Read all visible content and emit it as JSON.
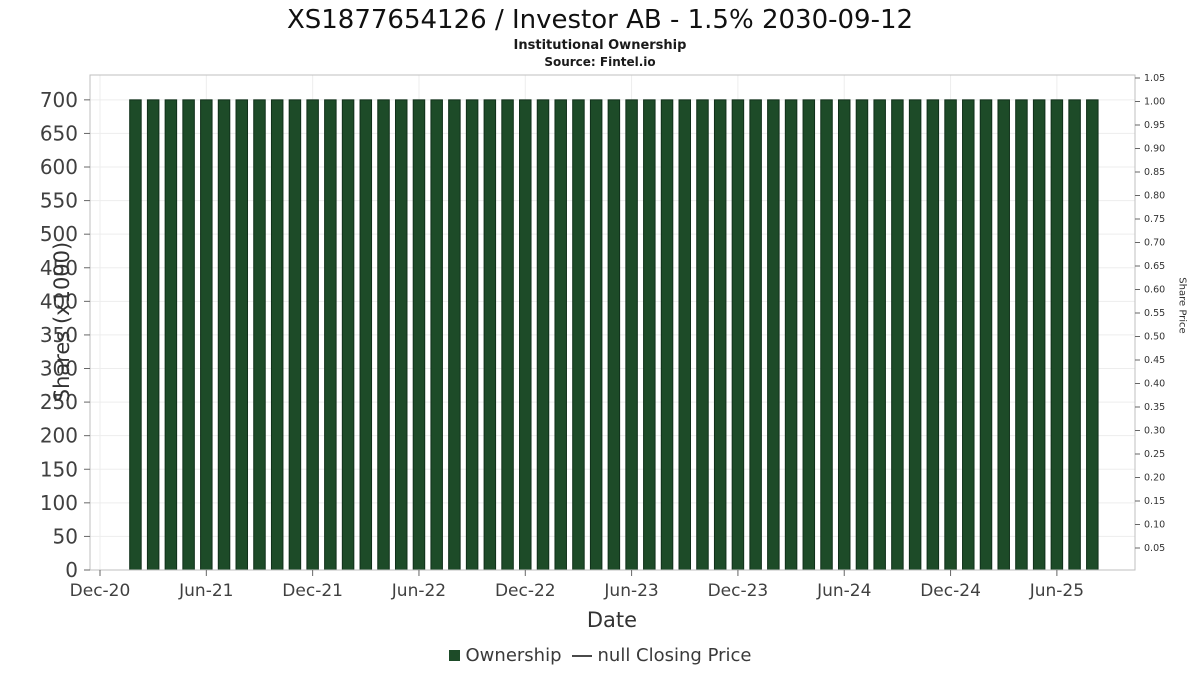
{
  "header": {
    "title": "XS1877654126 / Investor AB - 1.5% 2030-09-12",
    "subtitle": "Institutional Ownership",
    "source": "Source: Fintel.io"
  },
  "legend": {
    "ownership_label": "Ownership",
    "price_label": "null Closing Price"
  },
  "colors": {
    "bar_fill": "#1d4b28",
    "bar_edge": "#10301a",
    "grid": "#ededed",
    "plot_border": "#bfbfbf",
    "tick": "#666666",
    "tick_text": "#404040",
    "right_tick_text": "#333333",
    "legend_dash": "#4a4a4a"
  },
  "chart_data": {
    "type": "bar",
    "title": "XS1877654126 / Investor AB - 1.5% 2030-09-12",
    "subtitle": "Institutional Ownership",
    "source": "Source: Fintel.io",
    "xlabel": "Date",
    "ylabel_left": "Shares (x1000)",
    "ylabel_right": "Share Price",
    "ylim_left": [
      0,
      737
    ],
    "y_left_ticks": [
      0,
      50,
      100,
      150,
      200,
      250,
      300,
      350,
      400,
      450,
      500,
      550,
      600,
      650,
      700
    ],
    "y_right_ticks": [
      "1.05",
      "1.00",
      "0.95",
      "0.90",
      "0.85",
      "0.80",
      "0.75",
      "0.70",
      "0.65",
      "0.60",
      "0.55",
      "0.50",
      "0.45",
      "0.40",
      "0.35",
      "0.30",
      "0.25",
      "0.20",
      "0.15",
      "0.10",
      "0.05"
    ],
    "x_tick_labels": [
      "Dec-20",
      "Jun-21",
      "Dec-21",
      "Jun-22",
      "Dec-22",
      "Jun-23",
      "Dec-23",
      "Jun-24",
      "Dec-24",
      "Jun-25"
    ],
    "grid": true,
    "legend_position": "bottom",
    "categories": [
      "Feb-21",
      "Mar-21",
      "Apr-21",
      "May-21",
      "Jun-21",
      "Jul-21",
      "Aug-21",
      "Sep-21",
      "Oct-21",
      "Nov-21",
      "Dec-21",
      "Jan-22",
      "Feb-22",
      "Mar-22",
      "Apr-22",
      "May-22",
      "Jun-22",
      "Jul-22",
      "Aug-22",
      "Sep-22",
      "Oct-22",
      "Nov-22",
      "Dec-22",
      "Jan-23",
      "Feb-23",
      "Mar-23",
      "Apr-23",
      "May-23",
      "Jun-23",
      "Jul-23",
      "Aug-23",
      "Sep-23",
      "Oct-23",
      "Nov-23",
      "Dec-23",
      "Jan-24",
      "Feb-24",
      "Mar-24",
      "Apr-24",
      "May-24",
      "Jun-24",
      "Jul-24",
      "Aug-24",
      "Sep-24",
      "Oct-24",
      "Nov-24",
      "Dec-24",
      "Jan-25",
      "Feb-25",
      "Mar-25",
      "Apr-25",
      "May-25",
      "Jun-25",
      "Jul-25",
      "Aug-25"
    ],
    "series": [
      {
        "name": "Ownership",
        "values": [
          700,
          700,
          700,
          700,
          700,
          700,
          700,
          700,
          700,
          700,
          700,
          700,
          700,
          700,
          700,
          700,
          700,
          700,
          700,
          700,
          700,
          700,
          700,
          700,
          700,
          700,
          700,
          700,
          700,
          700,
          700,
          700,
          700,
          700,
          700,
          700,
          700,
          700,
          700,
          700,
          700,
          700,
          700,
          700,
          700,
          700,
          700,
          700,
          700,
          700,
          700,
          700,
          700,
          700,
          700
        ]
      },
      {
        "name": "null Closing Price",
        "values": null
      }
    ]
  }
}
